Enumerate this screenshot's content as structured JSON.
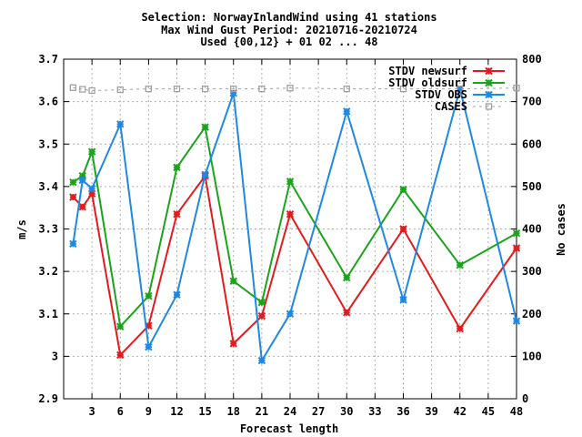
{
  "chart_data": {
    "type": "line",
    "title_lines": [
      "Selection: NorwayInlandWind using    41 stations",
      "Max Wind Gust   Period: 20210716-20210724",
      "Used {00,12} + 01 02 ... 48"
    ],
    "xlabel": "Forecast length",
    "ylabel": "m/s",
    "y2label": "No cases",
    "xlim": [
      0,
      48
    ],
    "ylim": [
      2.9,
      3.7
    ],
    "y2lim": [
      0,
      800
    ],
    "x_ticks": [
      3,
      6,
      9,
      12,
      15,
      18,
      21,
      24,
      27,
      30,
      33,
      36,
      39,
      42,
      45,
      48
    ],
    "y_ticks": [
      "2.9",
      "3",
      "3.1",
      "3.2",
      "3.3",
      "3.4",
      "3.5",
      "3.6",
      "3.7"
    ],
    "y2_ticks": [
      "0",
      "100",
      "200",
      "300",
      "400",
      "500",
      "600",
      "700",
      "800"
    ],
    "grid": true,
    "legend_position": "top-right",
    "series": [
      {
        "name": "STDV newsurf",
        "color": "#e41a1c",
        "axis": "left",
        "x": [
          1,
          2,
          3,
          6,
          9,
          12,
          15,
          18,
          21,
          24,
          30,
          36,
          42,
          48
        ],
        "values": [
          3.375,
          3.352,
          3.383,
          3.003,
          3.072,
          3.335,
          3.425,
          3.03,
          3.095,
          3.335,
          3.103,
          3.3,
          3.065,
          3.255
        ]
      },
      {
        "name": "STDV oldsurf",
        "color": "#1aa41a",
        "axis": "left",
        "x": [
          1,
          2,
          3,
          6,
          9,
          12,
          15,
          18,
          21,
          24,
          30,
          36,
          42,
          48
        ],
        "values": [
          3.41,
          3.425,
          3.482,
          3.07,
          3.142,
          3.445,
          3.54,
          3.177,
          3.127,
          3.412,
          3.185,
          3.393,
          3.215,
          3.29
        ]
      },
      {
        "name": "STDV OBS",
        "color": "#1e88e5",
        "axis": "left",
        "x": [
          1,
          2,
          3,
          6,
          9,
          12,
          15,
          18,
          21,
          24,
          30,
          36,
          42,
          48
        ],
        "values": [
          3.265,
          3.415,
          3.395,
          3.547,
          3.022,
          3.145,
          3.428,
          3.62,
          2.99,
          3.1,
          3.577,
          3.133,
          3.63,
          3.083
        ]
      },
      {
        "name": "CASES",
        "color": "#a0a0a0",
        "axis": "right",
        "x": [
          1,
          2,
          3,
          6,
          9,
          12,
          15,
          18,
          21,
          24,
          30,
          36,
          42,
          48
        ],
        "values": [
          733,
          729,
          726,
          728,
          730,
          730,
          730,
          730,
          730,
          732,
          730,
          730,
          730,
          732
        ]
      }
    ]
  }
}
